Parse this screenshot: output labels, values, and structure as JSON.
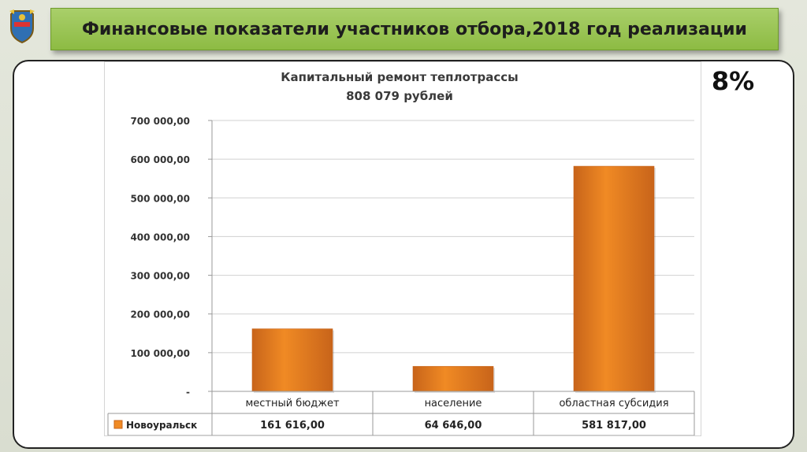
{
  "slide": {
    "title": "Финансовые показатели участников отбора,2018 год реализации",
    "percent": "8%"
  },
  "colors": {
    "title_bar": "#98c552",
    "bar": "#f08a24",
    "bar_dark": "#c8641a"
  },
  "chart_data": {
    "type": "bar",
    "title": "Капитальный ремонт теплотрассы",
    "subtitle": "808 079 рублей",
    "categories": [
      "местный бюджет",
      "население",
      "областная субсидия"
    ],
    "series": [
      {
        "name": "Новоуральск",
        "values": [
          161616.0,
          64646.0,
          581817.0
        ],
        "value_labels": [
          "161 616,00",
          "64 646,00",
          "581 817,00"
        ]
      }
    ],
    "ylim": [
      0,
      700000
    ],
    "yticks": [
      700000,
      600000,
      500000,
      400000,
      300000,
      200000,
      100000,
      0
    ],
    "ytick_labels": [
      "700 000,00",
      "600 000,00",
      "500 000,00",
      "400 000,00",
      "300 000,00",
      "200 000,00",
      "100 000,00",
      "-"
    ],
    "grid": true,
    "legend": "data-table"
  }
}
